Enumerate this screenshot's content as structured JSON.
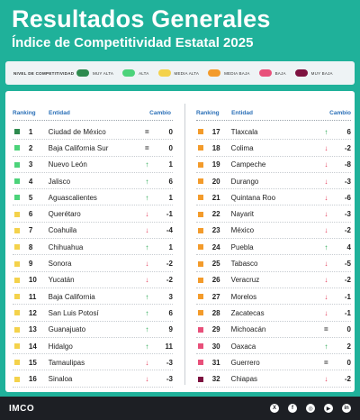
{
  "header": {
    "title": "Resultados Generales",
    "subtitle": "Índice de Competitividad Estatal 2025"
  },
  "legend": {
    "title": "NIVEL DE COMPETITIVIDAD",
    "items": [
      {
        "label": "MUY ALTA",
        "color": "#2d8a4e"
      },
      {
        "label": "ALTA",
        "color": "#4cd37a"
      },
      {
        "label": "MEDIA ALTA",
        "color": "#f4d24b"
      },
      {
        "label": "MEDIA BAJA",
        "color": "#f39b2b"
      },
      {
        "label": "BAJA",
        "color": "#e8507a"
      },
      {
        "label": "MUY BAJA",
        "color": "#7d1240"
      }
    ]
  },
  "columns": {
    "ranking": "Ranking",
    "entidad": "Entidad",
    "cambio": "Cambio"
  },
  "colors": {
    "up": "#1fa34a",
    "down": "#e23b5a",
    "same": "#222222"
  },
  "left_rows": [
    {
      "rank": "1",
      "entity": "Ciudad de México",
      "dir": "same",
      "change": "0",
      "level": "#2d8a4e"
    },
    {
      "rank": "2",
      "entity": "Baja California Sur",
      "dir": "same",
      "change": "0",
      "level": "#4cd37a"
    },
    {
      "rank": "3",
      "entity": "Nuevo León",
      "dir": "up",
      "change": "1",
      "level": "#4cd37a"
    },
    {
      "rank": "4",
      "entity": "Jalisco",
      "dir": "up",
      "change": "6",
      "level": "#4cd37a"
    },
    {
      "rank": "5",
      "entity": "Aguascalientes",
      "dir": "up",
      "change": "1",
      "level": "#4cd37a"
    },
    {
      "rank": "6",
      "entity": "Querétaro",
      "dir": "down",
      "change": "-1",
      "level": "#f4d24b"
    },
    {
      "rank": "7",
      "entity": "Coahuila",
      "dir": "down",
      "change": "-4",
      "level": "#f4d24b"
    },
    {
      "rank": "8",
      "entity": "Chihuahua",
      "dir": "up",
      "change": "1",
      "level": "#f4d24b"
    },
    {
      "rank": "9",
      "entity": "Sonora",
      "dir": "down",
      "change": "-2",
      "level": "#f4d24b"
    },
    {
      "rank": "10",
      "entity": "Yucatán",
      "dir": "down",
      "change": "-2",
      "level": "#f4d24b"
    },
    {
      "rank": "11",
      "entity": "Baja California",
      "dir": "up",
      "change": "3",
      "level": "#f4d24b"
    },
    {
      "rank": "12",
      "entity": "San Luis Potosí",
      "dir": "up",
      "change": "6",
      "level": "#f4d24b"
    },
    {
      "rank": "13",
      "entity": "Guanajuato",
      "dir": "up",
      "change": "9",
      "level": "#f4d24b"
    },
    {
      "rank": "14",
      "entity": "Hidalgo",
      "dir": "up",
      "change": "11",
      "level": "#f4d24b"
    },
    {
      "rank": "15",
      "entity": "Tamaulipas",
      "dir": "down",
      "change": "-3",
      "level": "#f4d24b"
    },
    {
      "rank": "16",
      "entity": "Sinaloa",
      "dir": "down",
      "change": "-3",
      "level": "#f4d24b"
    }
  ],
  "right_rows": [
    {
      "rank": "17",
      "entity": "Tlaxcala",
      "dir": "up",
      "change": "6",
      "level": "#f39b2b"
    },
    {
      "rank": "18",
      "entity": "Colima",
      "dir": "down",
      "change": "-2",
      "level": "#f39b2b"
    },
    {
      "rank": "19",
      "entity": "Campeche",
      "dir": "down",
      "change": "-8",
      "level": "#f39b2b"
    },
    {
      "rank": "20",
      "entity": "Durango",
      "dir": "down",
      "change": "-3",
      "level": "#f39b2b"
    },
    {
      "rank": "21",
      "entity": "Quintana Roo",
      "dir": "down",
      "change": "-6",
      "level": "#f39b2b"
    },
    {
      "rank": "22",
      "entity": "Nayarit",
      "dir": "down",
      "change": "-3",
      "level": "#f39b2b"
    },
    {
      "rank": "23",
      "entity": "México",
      "dir": "down",
      "change": "-2",
      "level": "#f39b2b"
    },
    {
      "rank": "24",
      "entity": "Puebla",
      "dir": "up",
      "change": "4",
      "level": "#f39b2b"
    },
    {
      "rank": "25",
      "entity": "Tabasco",
      "dir": "down",
      "change": "-5",
      "level": "#f39b2b"
    },
    {
      "rank": "26",
      "entity": "Veracruz",
      "dir": "down",
      "change": "-2",
      "level": "#f39b2b"
    },
    {
      "rank": "27",
      "entity": "Morelos",
      "dir": "down",
      "change": "-1",
      "level": "#f39b2b"
    },
    {
      "rank": "28",
      "entity": "Zacatecas",
      "dir": "down",
      "change": "-1",
      "level": "#f39b2b"
    },
    {
      "rank": "29",
      "entity": "Michoacán",
      "dir": "same",
      "change": "0",
      "level": "#e8507a"
    },
    {
      "rank": "30",
      "entity": "Oaxaca",
      "dir": "up",
      "change": "2",
      "level": "#e8507a"
    },
    {
      "rank": "31",
      "entity": "Guerrero",
      "dir": "same",
      "change": "0",
      "level": "#e8507a"
    },
    {
      "rank": "32",
      "entity": "Chiapas",
      "dir": "down",
      "change": "-2",
      "level": "#7d1240"
    }
  ],
  "footer": {
    "logo": "IMCO",
    "socials": [
      {
        "icon": "x-icon",
        "glyph": "X"
      },
      {
        "icon": "facebook-icon",
        "glyph": "f"
      },
      {
        "icon": "instagram-icon",
        "glyph": "◎"
      },
      {
        "icon": "youtube-icon",
        "glyph": "▶"
      },
      {
        "icon": "linkedin-icon",
        "glyph": "in"
      }
    ]
  }
}
